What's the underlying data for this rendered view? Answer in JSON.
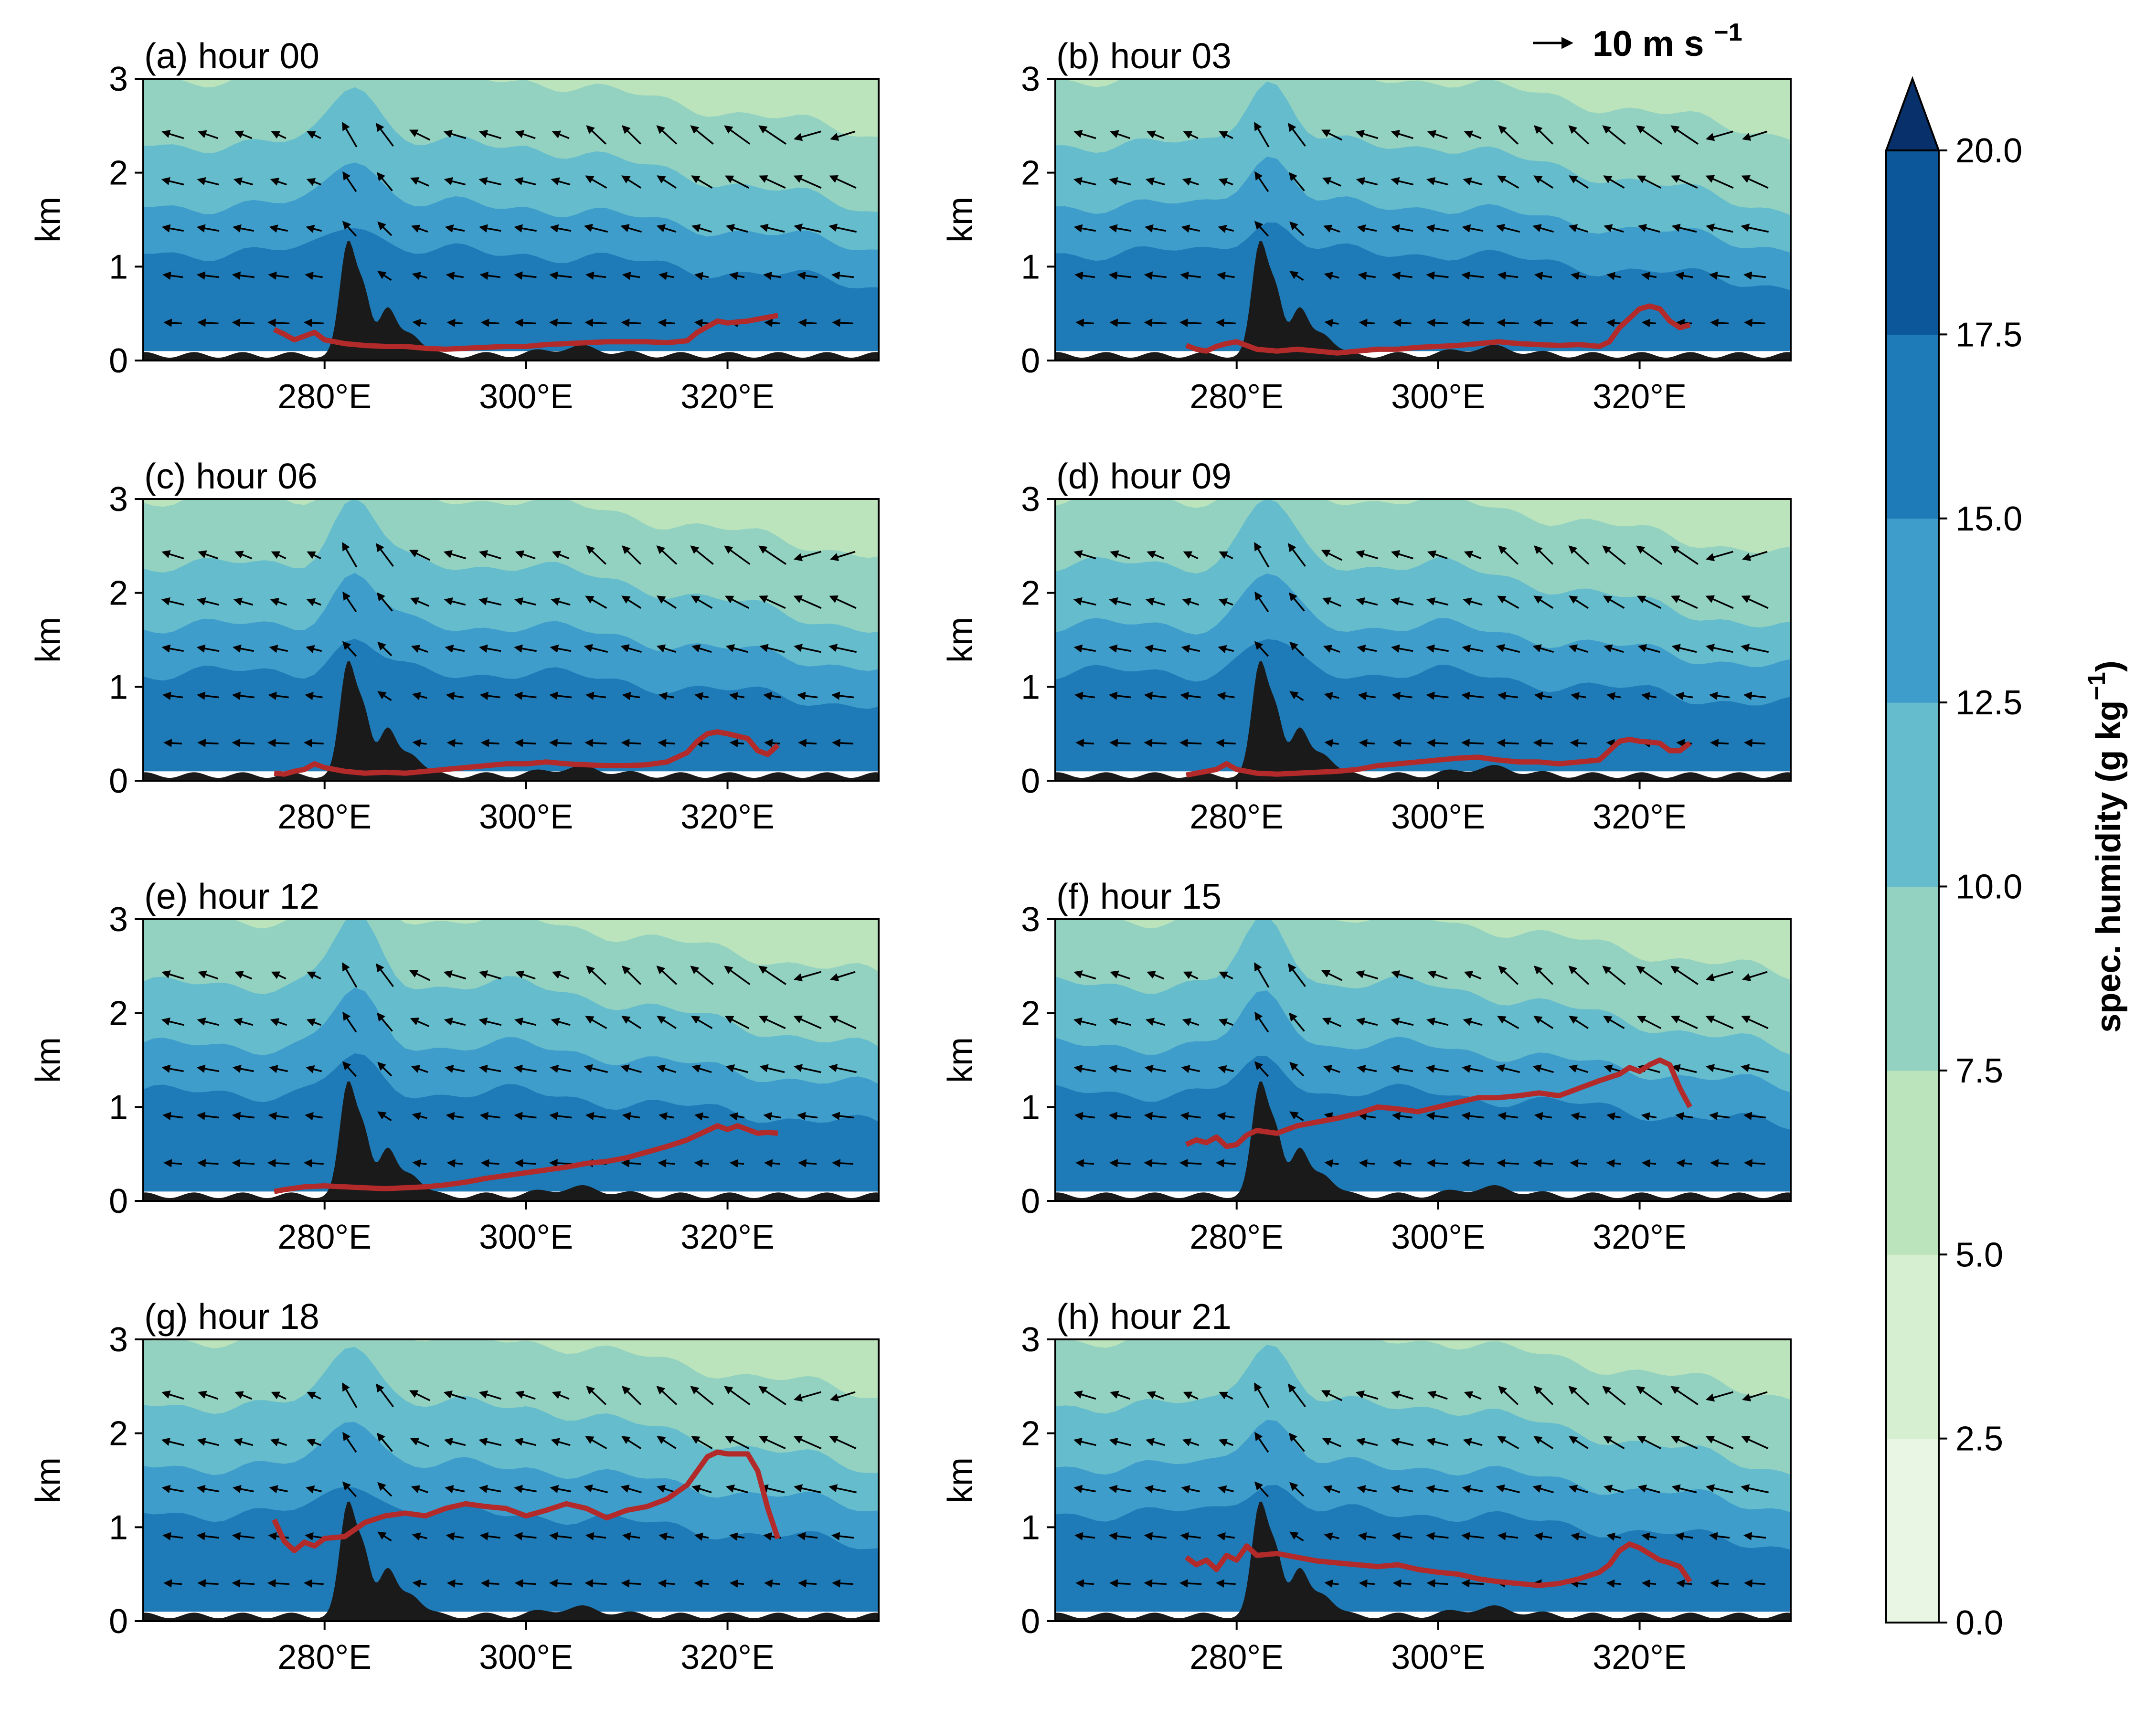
{
  "figure": {
    "reference_arrow": {
      "label": "10 m s",
      "superscript": "−1"
    },
    "colorbar": {
      "label": "spec. humidity (g kg",
      "label_superscript": "−1",
      "label_close": ")",
      "levels": [
        0.0,
        2.5,
        5.0,
        7.5,
        10.0,
        12.5,
        15.0,
        17.5,
        20.0
      ],
      "tick_labels": [
        "0.0",
        "2.5",
        "5.0",
        "7.5",
        "10.0",
        "12.5",
        "15.0",
        "17.5",
        "20.0"
      ],
      "colors": [
        "#e9f6e4",
        "#d6efd0",
        "#bbe4bc",
        "#93d2c0",
        "#65bccc",
        "#3f9dcb",
        "#1f7bb7",
        "#0b5799",
        "#08306b"
      ],
      "extend": "max"
    }
  },
  "chart_data": {
    "type": "contourf",
    "x_ticks": [
      280,
      300,
      320
    ],
    "x_tick_labels": [
      "280°E",
      "300°E",
      "320°E"
    ],
    "xlim": [
      262,
      335
    ],
    "y_ticks": [
      0,
      1,
      2,
      3
    ],
    "y_tick_labels": [
      "0",
      "1",
      "2",
      "3"
    ],
    "ylim": [
      0,
      3
    ],
    "ylabel": "km",
    "panels": [
      {
        "title": "(a) hour 00",
        "red_line": [
          [
            275,
            0.33
          ],
          [
            276,
            0.28
          ],
          [
            277,
            0.22
          ],
          [
            278,
            0.26
          ],
          [
            279,
            0.3
          ],
          [
            280,
            0.22
          ],
          [
            282,
            0.18
          ],
          [
            284,
            0.16
          ],
          [
            286,
            0.15
          ],
          [
            288,
            0.15
          ],
          [
            290,
            0.13
          ],
          [
            292,
            0.12
          ],
          [
            294,
            0.13
          ],
          [
            296,
            0.14
          ],
          [
            298,
            0.15
          ],
          [
            300,
            0.15
          ],
          [
            302,
            0.17
          ],
          [
            304,
            0.18
          ],
          [
            306,
            0.19
          ],
          [
            308,
            0.2
          ],
          [
            310,
            0.2
          ],
          [
            312,
            0.2
          ],
          [
            314,
            0.19
          ],
          [
            316,
            0.21
          ],
          [
            317,
            0.3
          ],
          [
            318,
            0.36
          ],
          [
            319,
            0.42
          ],
          [
            320,
            0.4
          ],
          [
            322,
            0.42
          ],
          [
            324,
            0.46
          ],
          [
            325,
            0.48
          ]
        ]
      },
      {
        "title": "(b) hour 03",
        "red_line": [
          [
            275,
            0.16
          ],
          [
            276,
            0.12
          ],
          [
            277,
            0.1
          ],
          [
            278,
            0.15
          ],
          [
            279,
            0.18
          ],
          [
            280,
            0.2
          ],
          [
            282,
            0.12
          ],
          [
            284,
            0.1
          ],
          [
            286,
            0.12
          ],
          [
            288,
            0.1
          ],
          [
            290,
            0.08
          ],
          [
            292,
            0.1
          ],
          [
            294,
            0.12
          ],
          [
            296,
            0.12
          ],
          [
            298,
            0.14
          ],
          [
            300,
            0.15
          ],
          [
            302,
            0.16
          ],
          [
            304,
            0.18
          ],
          [
            306,
            0.2
          ],
          [
            308,
            0.18
          ],
          [
            310,
            0.17
          ],
          [
            312,
            0.16
          ],
          [
            314,
            0.17
          ],
          [
            316,
            0.15
          ],
          [
            317,
            0.2
          ],
          [
            318,
            0.35
          ],
          [
            319,
            0.45
          ],
          [
            320,
            0.55
          ],
          [
            321,
            0.58
          ],
          [
            322,
            0.55
          ],
          [
            323,
            0.42
          ],
          [
            324,
            0.35
          ],
          [
            325,
            0.38
          ]
        ]
      },
      {
        "title": "(c) hour 06",
        "red_line": [
          [
            275,
            0.08
          ],
          [
            276,
            0.07
          ],
          [
            277,
            0.1
          ],
          [
            278,
            0.12
          ],
          [
            279,
            0.18
          ],
          [
            280,
            0.14
          ],
          [
            282,
            0.1
          ],
          [
            284,
            0.08
          ],
          [
            286,
            0.09
          ],
          [
            288,
            0.08
          ],
          [
            290,
            0.1
          ],
          [
            292,
            0.12
          ],
          [
            294,
            0.14
          ],
          [
            296,
            0.16
          ],
          [
            298,
            0.18
          ],
          [
            300,
            0.18
          ],
          [
            302,
            0.2
          ],
          [
            304,
            0.18
          ],
          [
            306,
            0.17
          ],
          [
            308,
            0.16
          ],
          [
            310,
            0.16
          ],
          [
            312,
            0.17
          ],
          [
            314,
            0.2
          ],
          [
            316,
            0.3
          ],
          [
            317,
            0.42
          ],
          [
            318,
            0.5
          ],
          [
            319,
            0.52
          ],
          [
            320,
            0.5
          ],
          [
            322,
            0.45
          ],
          [
            323,
            0.32
          ],
          [
            324,
            0.28
          ],
          [
            325,
            0.38
          ]
        ]
      },
      {
        "title": "(d) hour 09",
        "red_line": [
          [
            275,
            0.06
          ],
          [
            276,
            0.08
          ],
          [
            277,
            0.1
          ],
          [
            278,
            0.12
          ],
          [
            279,
            0.18
          ],
          [
            280,
            0.12
          ],
          [
            282,
            0.08
          ],
          [
            284,
            0.07
          ],
          [
            286,
            0.08
          ],
          [
            288,
            0.09
          ],
          [
            290,
            0.1
          ],
          [
            292,
            0.12
          ],
          [
            294,
            0.16
          ],
          [
            296,
            0.18
          ],
          [
            298,
            0.2
          ],
          [
            300,
            0.22
          ],
          [
            302,
            0.24
          ],
          [
            304,
            0.25
          ],
          [
            306,
            0.22
          ],
          [
            308,
            0.2
          ],
          [
            310,
            0.2
          ],
          [
            312,
            0.18
          ],
          [
            314,
            0.2
          ],
          [
            316,
            0.22
          ],
          [
            317,
            0.32
          ],
          [
            318,
            0.42
          ],
          [
            319,
            0.44
          ],
          [
            320,
            0.42
          ],
          [
            322,
            0.4
          ],
          [
            323,
            0.32
          ],
          [
            324,
            0.32
          ],
          [
            325,
            0.4
          ]
        ]
      },
      {
        "title": "(e) hour 12",
        "red_line": [
          [
            275,
            0.1
          ],
          [
            276,
            0.12
          ],
          [
            278,
            0.15
          ],
          [
            280,
            0.16
          ],
          [
            282,
            0.15
          ],
          [
            284,
            0.14
          ],
          [
            286,
            0.13
          ],
          [
            288,
            0.14
          ],
          [
            290,
            0.15
          ],
          [
            292,
            0.17
          ],
          [
            294,
            0.2
          ],
          [
            296,
            0.24
          ],
          [
            298,
            0.27
          ],
          [
            300,
            0.3
          ],
          [
            302,
            0.33
          ],
          [
            304,
            0.36
          ],
          [
            306,
            0.4
          ],
          [
            308,
            0.42
          ],
          [
            310,
            0.46
          ],
          [
            312,
            0.52
          ],
          [
            314,
            0.58
          ],
          [
            316,
            0.65
          ],
          [
            317,
            0.7
          ],
          [
            318,
            0.75
          ],
          [
            319,
            0.8
          ],
          [
            320,
            0.76
          ],
          [
            321,
            0.8
          ],
          [
            322,
            0.76
          ],
          [
            323,
            0.72
          ],
          [
            324,
            0.73
          ],
          [
            325,
            0.72
          ]
        ]
      },
      {
        "title": "(f) hour 15",
        "red_line": [
          [
            275,
            0.6
          ],
          [
            276,
            0.65
          ],
          [
            277,
            0.62
          ],
          [
            278,
            0.68
          ],
          [
            279,
            0.58
          ],
          [
            280,
            0.6
          ],
          [
            281,
            0.7
          ],
          [
            282,
            0.75
          ],
          [
            284,
            0.72
          ],
          [
            286,
            0.8
          ],
          [
            288,
            0.84
          ],
          [
            290,
            0.88
          ],
          [
            292,
            0.93
          ],
          [
            294,
            1.0
          ],
          [
            296,
            0.98
          ],
          [
            298,
            0.95
          ],
          [
            300,
            1.0
          ],
          [
            302,
            1.05
          ],
          [
            304,
            1.1
          ],
          [
            306,
            1.1
          ],
          [
            308,
            1.12
          ],
          [
            310,
            1.15
          ],
          [
            312,
            1.12
          ],
          [
            314,
            1.2
          ],
          [
            316,
            1.28
          ],
          [
            318,
            1.35
          ],
          [
            319,
            1.42
          ],
          [
            320,
            1.38
          ],
          [
            321,
            1.45
          ],
          [
            322,
            1.5
          ],
          [
            323,
            1.45
          ],
          [
            324,
            1.2
          ],
          [
            325,
            1.0
          ]
        ]
      },
      {
        "title": "(g) hour 18",
        "red_line": [
          [
            275,
            1.08
          ],
          [
            276,
            0.85
          ],
          [
            277,
            0.75
          ],
          [
            278,
            0.84
          ],
          [
            279,
            0.8
          ],
          [
            280,
            0.88
          ],
          [
            282,
            0.9
          ],
          [
            284,
            1.05
          ],
          [
            286,
            1.12
          ],
          [
            288,
            1.15
          ],
          [
            290,
            1.12
          ],
          [
            292,
            1.2
          ],
          [
            294,
            1.25
          ],
          [
            296,
            1.22
          ],
          [
            298,
            1.2
          ],
          [
            300,
            1.12
          ],
          [
            302,
            1.18
          ],
          [
            304,
            1.25
          ],
          [
            306,
            1.2
          ],
          [
            308,
            1.1
          ],
          [
            310,
            1.18
          ],
          [
            312,
            1.22
          ],
          [
            314,
            1.3
          ],
          [
            316,
            1.45
          ],
          [
            317,
            1.6
          ],
          [
            318,
            1.75
          ],
          [
            319,
            1.8
          ],
          [
            320,
            1.78
          ],
          [
            322,
            1.78
          ],
          [
            323,
            1.6
          ],
          [
            324,
            1.2
          ],
          [
            325,
            0.88
          ]
        ]
      },
      {
        "title": "(h) hour 21",
        "red_line": [
          [
            275,
            0.68
          ],
          [
            276,
            0.6
          ],
          [
            277,
            0.65
          ],
          [
            278,
            0.55
          ],
          [
            279,
            0.7
          ],
          [
            280,
            0.65
          ],
          [
            281,
            0.8
          ],
          [
            282,
            0.7
          ],
          [
            284,
            0.72
          ],
          [
            286,
            0.68
          ],
          [
            288,
            0.64
          ],
          [
            290,
            0.62
          ],
          [
            292,
            0.6
          ],
          [
            294,
            0.58
          ],
          [
            296,
            0.6
          ],
          [
            298,
            0.55
          ],
          [
            300,
            0.52
          ],
          [
            302,
            0.5
          ],
          [
            304,
            0.45
          ],
          [
            306,
            0.42
          ],
          [
            308,
            0.4
          ],
          [
            310,
            0.38
          ],
          [
            312,
            0.4
          ],
          [
            314,
            0.45
          ],
          [
            316,
            0.52
          ],
          [
            317,
            0.6
          ],
          [
            318,
            0.75
          ],
          [
            319,
            0.82
          ],
          [
            320,
            0.78
          ],
          [
            322,
            0.65
          ],
          [
            323,
            0.62
          ],
          [
            324,
            0.58
          ],
          [
            325,
            0.42
          ]
        ]
      }
    ]
  }
}
